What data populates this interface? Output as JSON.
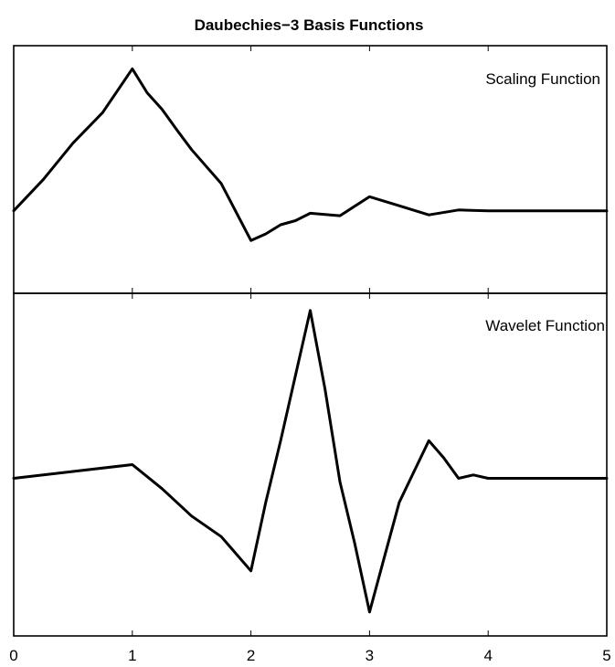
{
  "chart_data": {
    "type": "line",
    "title": "Daubechies−3 Basis Functions",
    "xlim": [
      0,
      5
    ],
    "x_ticks": [
      "0",
      "1",
      "2",
      "3",
      "4",
      "5"
    ],
    "panels": [
      {
        "label": "Scaling Function",
        "ylim": [
          -1.0,
          2.0
        ],
        "x": [
          0,
          0.25,
          0.5,
          0.75,
          1.0,
          1.125,
          1.25,
          1.375,
          1.5,
          1.75,
          2.0,
          2.125,
          2.25,
          2.375,
          2.5,
          2.75,
          3.0,
          3.25,
          3.5,
          3.75,
          4.0,
          4.25,
          4.5,
          4.75,
          5.0
        ],
        "values": [
          0.0,
          0.38,
          0.82,
          1.19,
          1.72,
          1.43,
          1.23,
          0.98,
          0.74,
          0.33,
          -0.36,
          -0.28,
          -0.17,
          -0.12,
          -0.03,
          -0.06,
          0.17,
          0.06,
          -0.05,
          0.01,
          0.0,
          0.0,
          0.0,
          0.0,
          0.0
        ]
      },
      {
        "label": "Wavelet Function",
        "ylim": [
          -2.3,
          2.7
        ],
        "x": [
          0,
          0.5,
          1.0,
          1.25,
          1.5,
          1.75,
          2.0,
          2.125,
          2.25,
          2.375,
          2.5,
          2.625,
          2.75,
          2.875,
          3.0,
          3.125,
          3.25,
          3.375,
          3.5,
          3.625,
          3.75,
          3.875,
          4.0,
          4.25,
          4.5,
          5.0
        ],
        "values": [
          0.0,
          0.1,
          0.2,
          -0.15,
          -0.55,
          -0.85,
          -1.35,
          -0.35,
          0.55,
          1.5,
          2.45,
          1.3,
          -0.05,
          -0.95,
          -1.95,
          -1.15,
          -0.35,
          0.1,
          0.55,
          0.3,
          0.0,
          0.05,
          0.0,
          0.0,
          0.0,
          0.0
        ]
      }
    ]
  }
}
